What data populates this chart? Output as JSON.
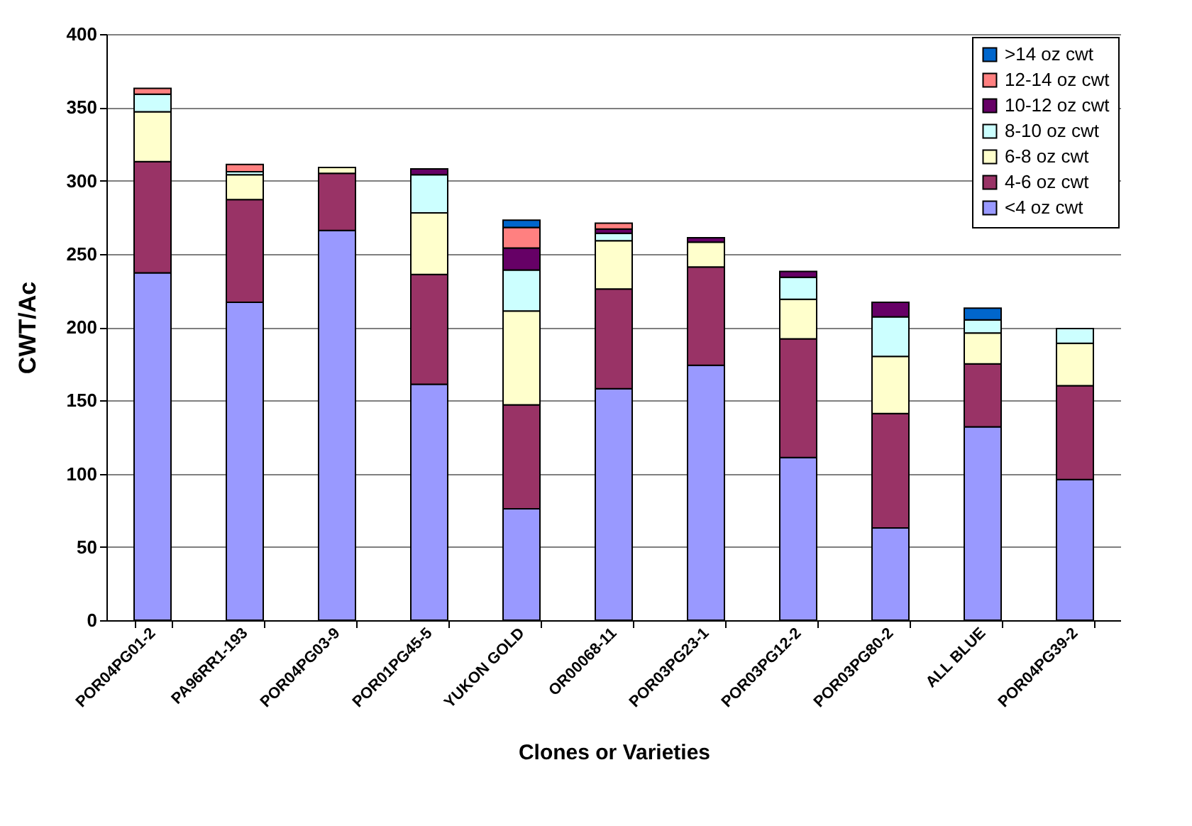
{
  "chart_data": {
    "type": "bar",
    "stacked": true,
    "xlabel": "Clones or Varieties",
    "ylabel": "CWT/Ac",
    "categories": [
      "POR04PG01-2",
      "PA96RR1-193",
      "POR04PG03-9",
      "POR01PG45-5",
      "YUKON GOLD",
      "OR00068-11",
      "POR03PG23-1",
      "POR03PG12-2",
      "POR03PG80-2",
      "ALL BLUE",
      "POR04PG39-2"
    ],
    "series": [
      {
        "name": "<4 oz cwt",
        "color": "#9999ff",
        "values": [
          237,
          217,
          266,
          161,
          76,
          158,
          174,
          111,
          63,
          132,
          96
        ]
      },
      {
        "name": "4-6 oz cwt",
        "color": "#993366",
        "values": [
          76,
          70,
          39,
          75,
          71,
          68,
          67,
          81,
          78,
          43,
          64
        ]
      },
      {
        "name": "6-8 oz cwt",
        "color": "#ffffcc",
        "values": [
          34,
          17,
          4,
          42,
          64,
          33,
          17,
          27,
          39,
          21,
          29
        ]
      },
      {
        "name": "8-10 oz cwt",
        "color": "#ccffff",
        "values": [
          12,
          2,
          null,
          26,
          28,
          5,
          null,
          15,
          27,
          9,
          10
        ]
      },
      {
        "name": "10-12 oz cwt",
        "color": "#660066",
        "values": [
          null,
          null,
          null,
          4,
          15,
          3,
          3,
          4,
          10,
          null,
          null
        ]
      },
      {
        "name": "12-14 oz cwt",
        "color": "#ff8080",
        "values": [
          4,
          5,
          null,
          null,
          14,
          4,
          null,
          null,
          null,
          null,
          null
        ]
      },
      {
        "name": ">14 oz cwt",
        "color": "#0066cc",
        "values": [
          null,
          null,
          null,
          null,
          5,
          null,
          null,
          null,
          null,
          8,
          null
        ]
      }
    ],
    "ylim": [
      0,
      400
    ],
    "yticks": [
      0,
      50,
      100,
      150,
      200,
      250,
      300,
      350,
      400
    ],
    "grid": "y",
    "legend": "top right"
  }
}
